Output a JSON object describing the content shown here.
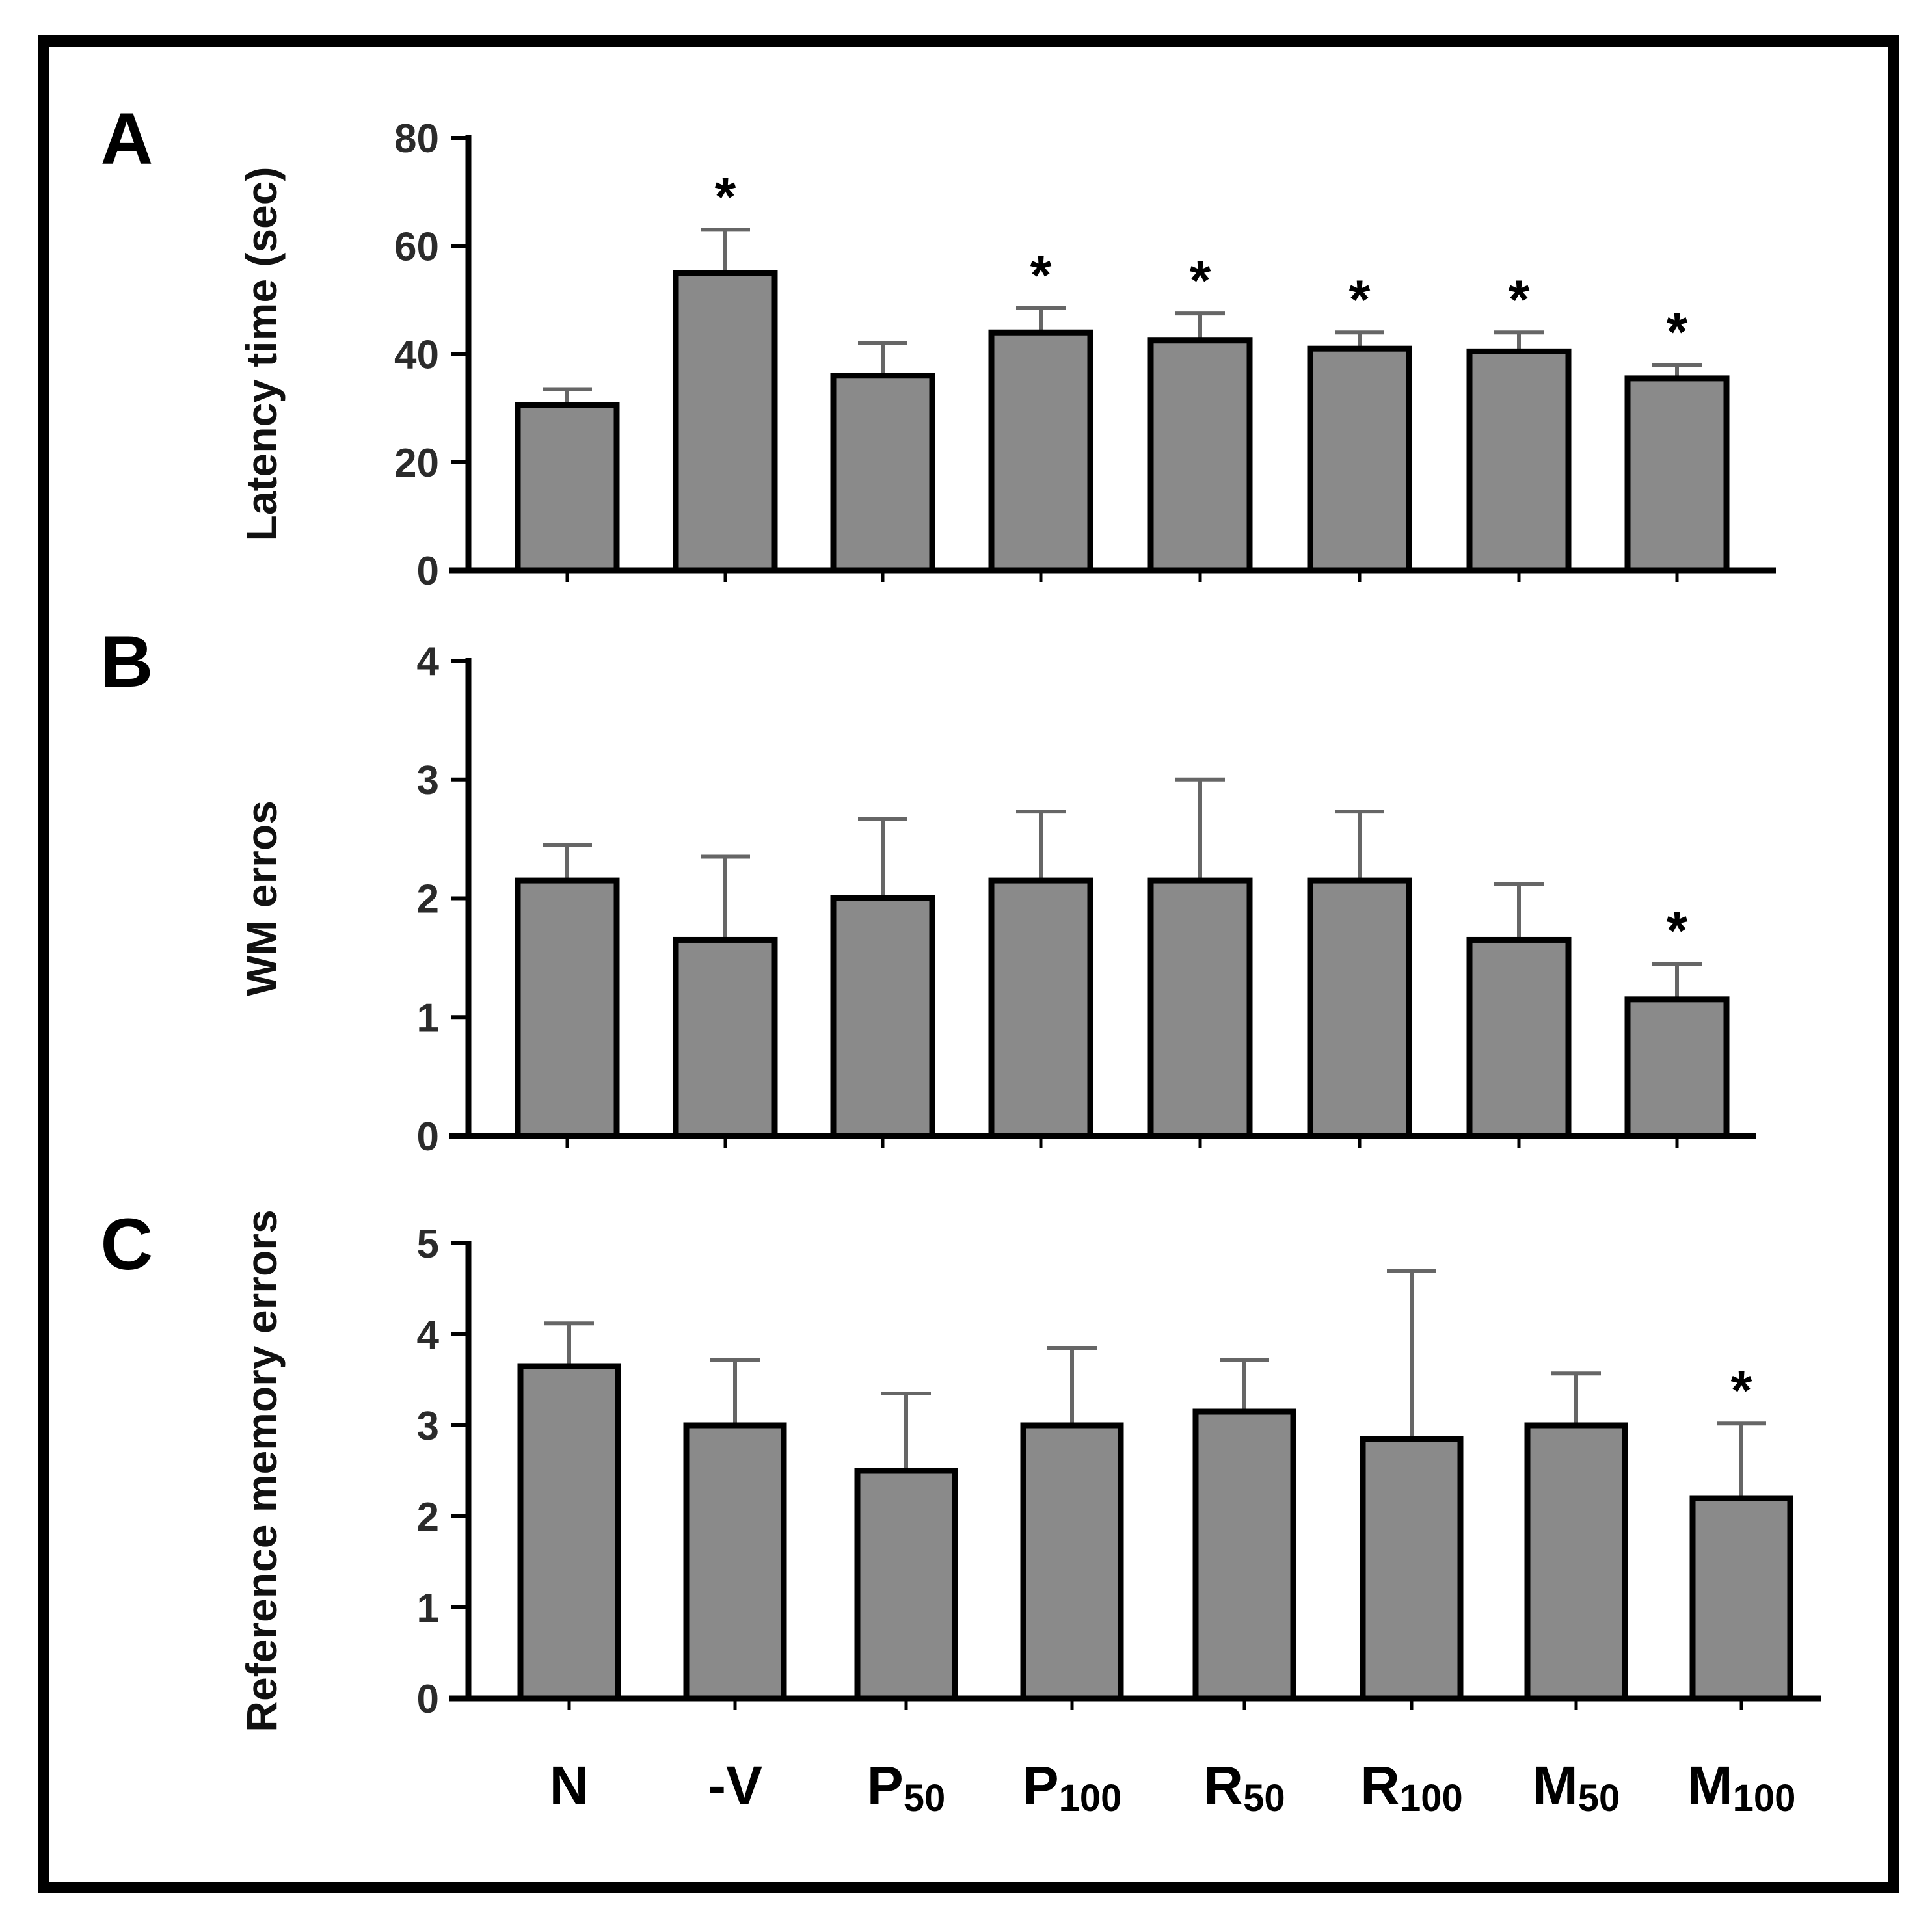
{
  "figure": {
    "categories": [
      {
        "main": "N",
        "sub": ""
      },
      {
        "main": "-V",
        "sub": ""
      },
      {
        "main": "P",
        "sub": "50"
      },
      {
        "main": "P",
        "sub": "100"
      },
      {
        "main": "R",
        "sub": "50"
      },
      {
        "main": "R",
        "sub": "100"
      },
      {
        "main": "M",
        "sub": "50"
      },
      {
        "main": "M",
        "sub": "100"
      }
    ],
    "colors": {
      "bar": "#8a8a8a",
      "border": "#000000",
      "error_bar": "#666666"
    },
    "significance_marker": "*"
  },
  "chart_data": [
    {
      "type": "bar",
      "panel": "A",
      "title": "",
      "ylabel": "Latency time (sec)",
      "xlabel": "",
      "categories": [
        "N",
        "-V",
        "P50",
        "P100",
        "R50",
        "R100",
        "M50",
        "M100"
      ],
      "values": [
        30.5,
        55,
        36,
        44,
        42.5,
        41,
        40.5,
        35.5
      ],
      "errors": [
        3,
        8,
        6,
        4.5,
        5,
        3,
        3.5,
        2.5
      ],
      "significant": [
        false,
        true,
        false,
        true,
        true,
        true,
        true,
        true
      ],
      "ylim": [
        0,
        80
      ],
      "yticks": [
        0,
        20,
        40,
        60,
        80
      ]
    },
    {
      "type": "bar",
      "panel": "B",
      "title": "",
      "ylabel": "WM erros",
      "xlabel": "",
      "categories": [
        "N",
        "-V",
        "P50",
        "P100",
        "R50",
        "R100",
        "M50",
        "M100"
      ],
      "values": [
        2.15,
        1.65,
        2.0,
        2.15,
        2.15,
        2.15,
        1.65,
        1.15
      ],
      "errors": [
        0.3,
        0.7,
        0.67,
        0.58,
        0.85,
        0.58,
        0.47,
        0.3
      ],
      "significant": [
        false,
        false,
        false,
        false,
        false,
        false,
        false,
        true
      ],
      "ylim": [
        0,
        4
      ],
      "yticks": [
        0,
        1,
        2,
        3,
        4
      ]
    },
    {
      "type": "bar",
      "panel": "C",
      "title": "",
      "ylabel": "Reference memory errors",
      "xlabel": "",
      "categories": [
        "N",
        "-V",
        "P50",
        "P100",
        "R50",
        "R100",
        "M50",
        "M100"
      ],
      "values": [
        3.65,
        3.0,
        2.5,
        3.0,
        3.15,
        2.85,
        3.0,
        2.2
      ],
      "errors": [
        0.47,
        0.72,
        0.85,
        0.85,
        0.57,
        1.85,
        0.57,
        0.82
      ],
      "significant": [
        false,
        false,
        false,
        false,
        false,
        false,
        false,
        true
      ],
      "ylim": [
        0,
        5
      ],
      "yticks": [
        0,
        1,
        2,
        3,
        4,
        5
      ]
    }
  ]
}
